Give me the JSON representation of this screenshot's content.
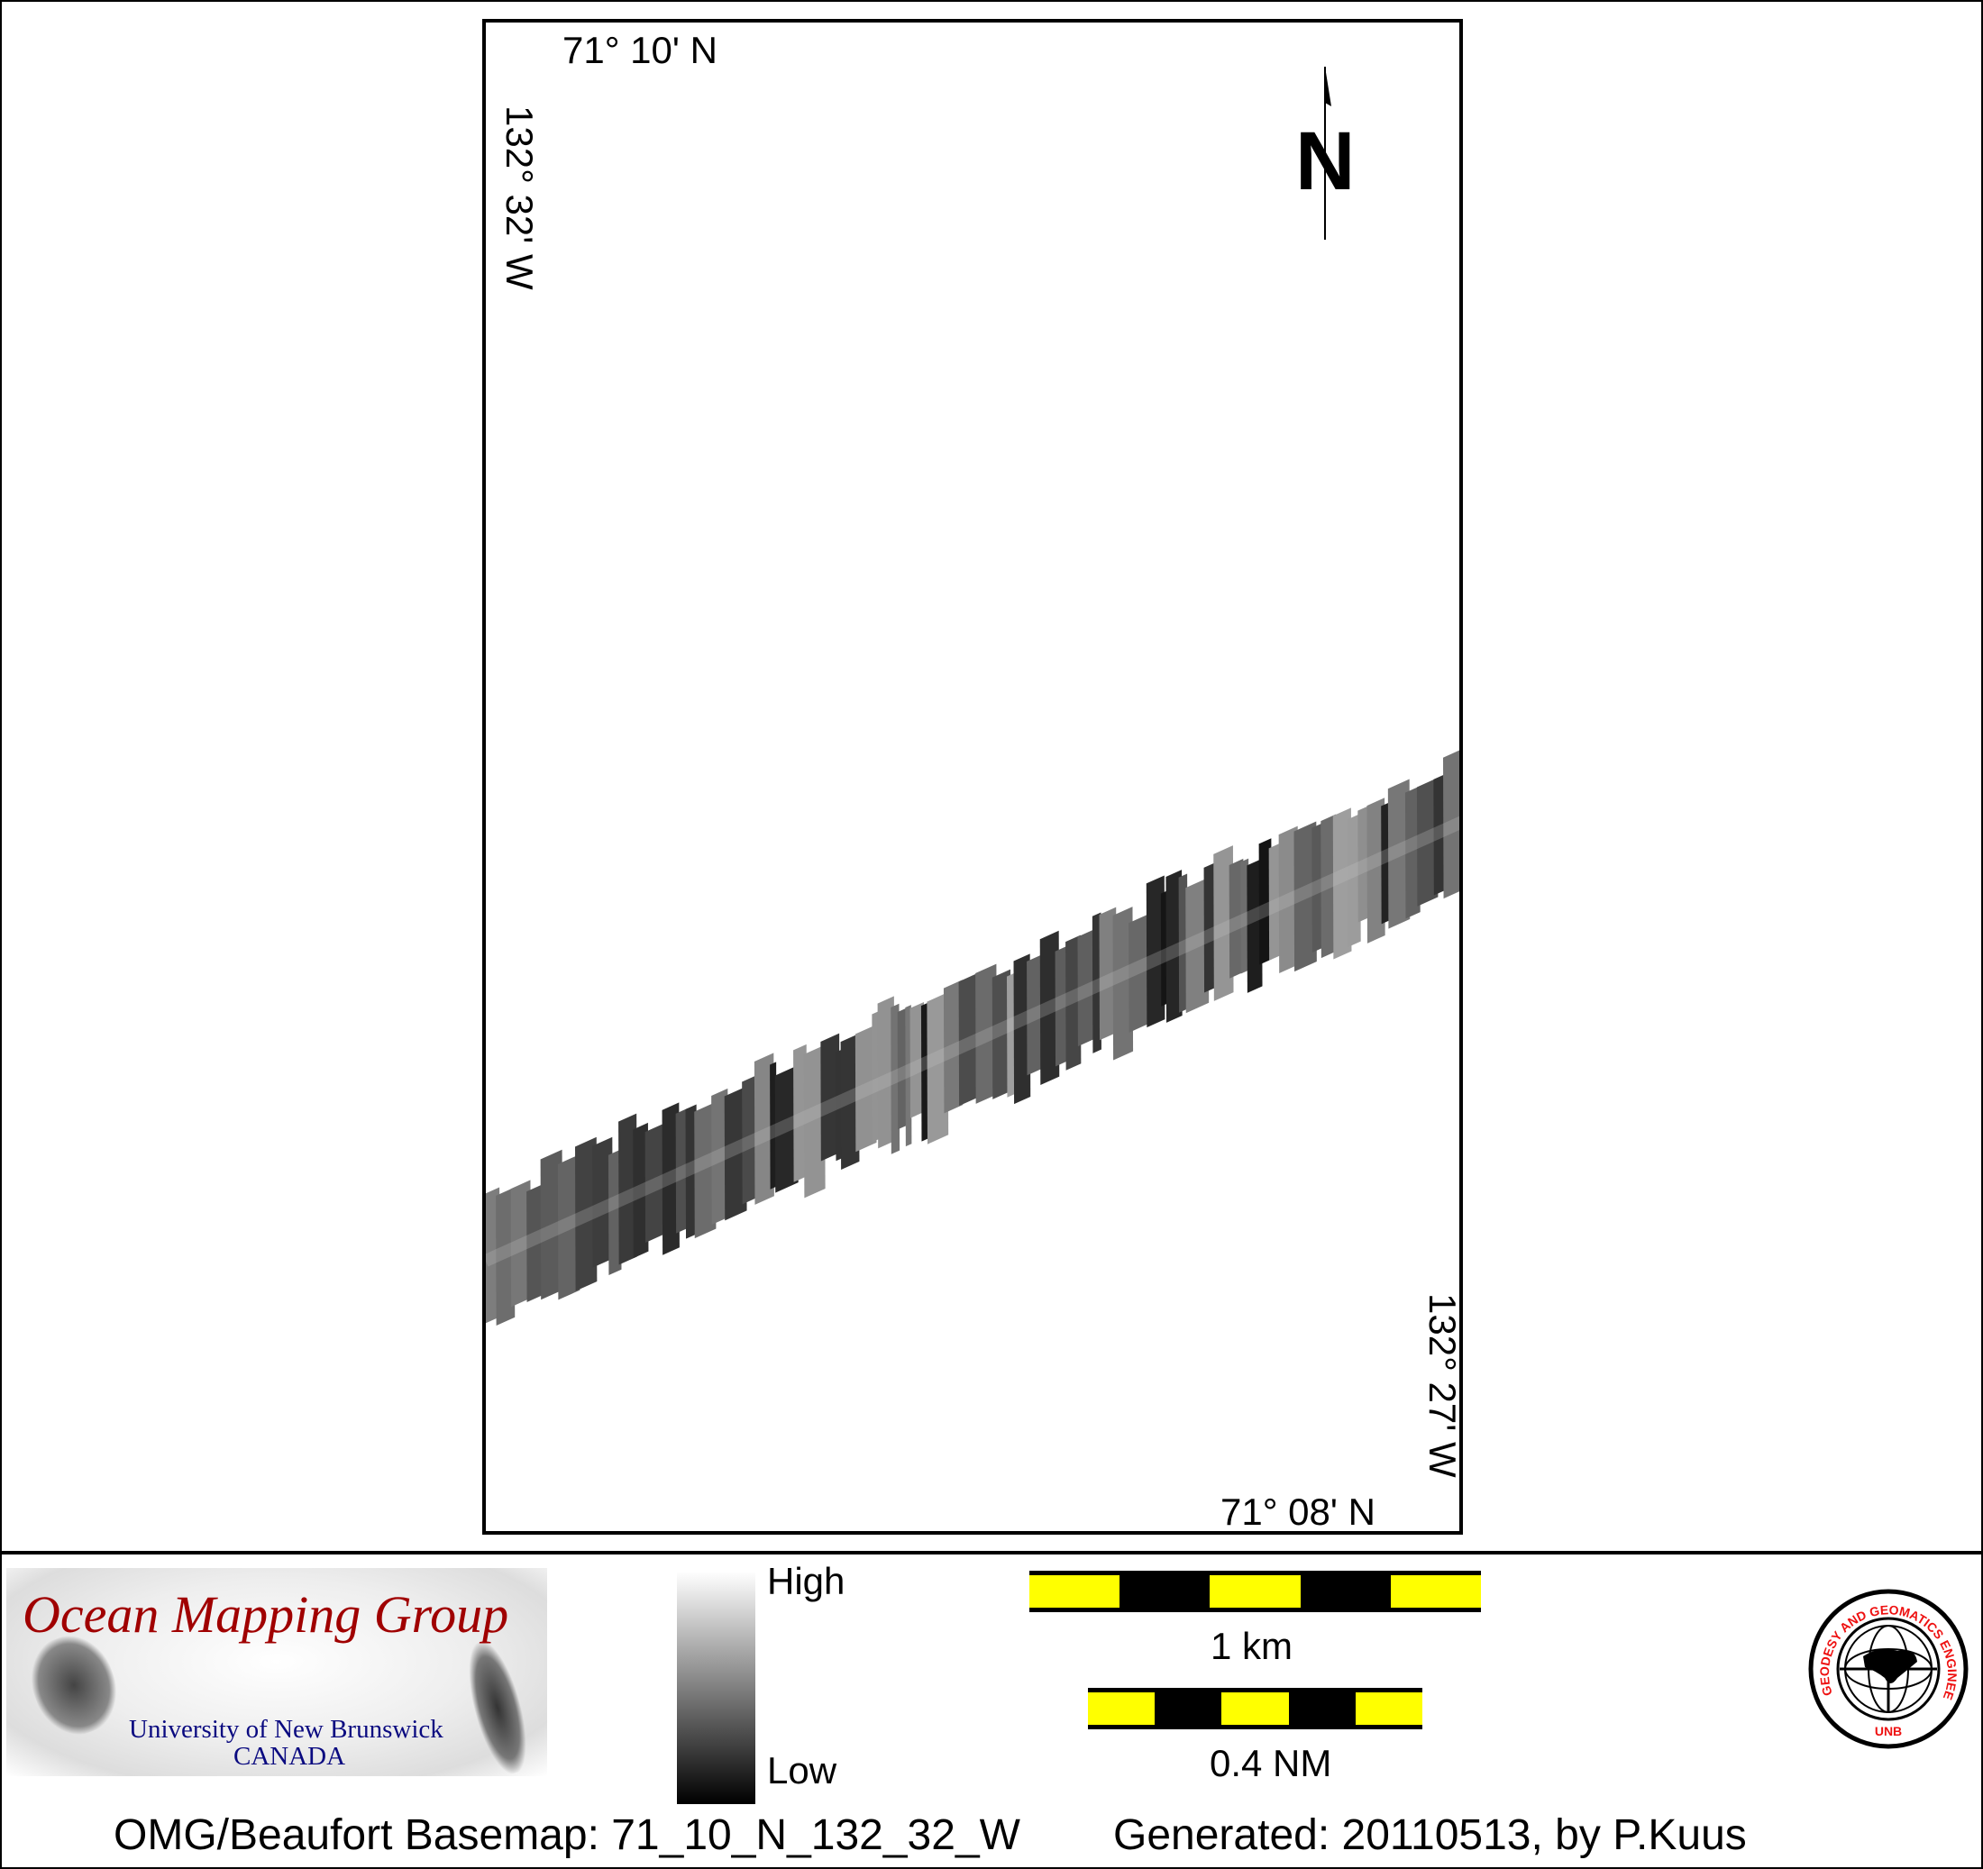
{
  "map": {
    "top_lat_label": "71° 10' N",
    "bottom_lat_label": "71° 08' N",
    "left_lon_label": "132° 32' W",
    "right_lon_label": "132° 27' W",
    "north_label": "N",
    "swath_description_colors": {
      "low": "#000000",
      "high": "#ffffff"
    }
  },
  "legend": {
    "high_label": "High",
    "low_label": "Low",
    "scale_km_label": "1 km",
    "scale_nm_label": "0.4 NM",
    "scale_colors": {
      "a": "#ffff00",
      "b": "#000000"
    }
  },
  "logos": {
    "omg_title": "Ocean Mapping Group",
    "omg_university": "University of New Brunswick",
    "omg_country": "CANADA",
    "unb_ring_text": "GEODESY AND GEOMATICS ENGINEERING",
    "unb_bottom_text": "UNB",
    "omg_color": "#a00000",
    "unb_color": "#ee1111"
  },
  "footer": {
    "basemap": "OMG/Beaufort Basemap: 71_10_N_132_32_W",
    "generated": "Generated: 20110513, by P.Kuus"
  }
}
